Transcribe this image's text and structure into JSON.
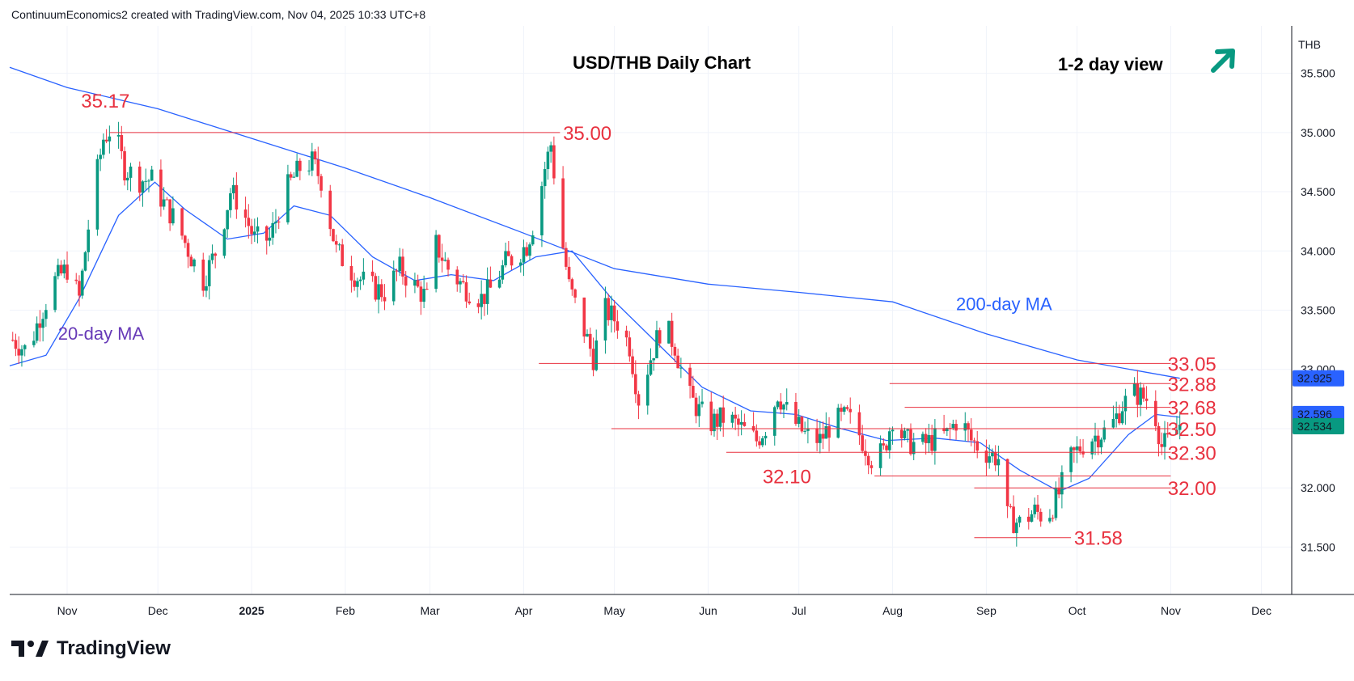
{
  "header": {
    "text": "ContinuumEconomics2 created with TradingView.com, Nov 04, 2025 10:33 UTC+8"
  },
  "brand": {
    "name": "TradingView",
    "icon": "tradingview-logo-icon"
  },
  "chart_data": {
    "type": "candlestick",
    "title": "USD/THB Daily Chart",
    "view_label": "1-2 day view",
    "view_icon": "arrow-up-right-icon",
    "currency_label": "THB",
    "ylim": [
      31.1,
      35.9
    ],
    "y_ticks": [
      35.5,
      35.0,
      34.5,
      34.0,
      33.5,
      33.0,
      32.5,
      32.0,
      31.5
    ],
    "y_tick_labels": [
      "35.500",
      "35.000",
      "34.500",
      "34.000",
      "33.500",
      "33.000",
      "32.500",
      "32.000",
      "31.500"
    ],
    "x_range": [
      "2024-10-13",
      "2025-12-11"
    ],
    "x_ticks": [
      {
        "date": "2024-11-01",
        "label": "Nov",
        "bold": false
      },
      {
        "date": "2024-12-01",
        "label": "Dec",
        "bold": false
      },
      {
        "date": "2025-01-01",
        "label": "2025",
        "bold": true
      },
      {
        "date": "2025-02-01",
        "label": "Feb",
        "bold": false
      },
      {
        "date": "2025-03-01",
        "label": "Mar",
        "bold": false
      },
      {
        "date": "2025-04-01",
        "label": "Apr",
        "bold": false
      },
      {
        "date": "2025-05-01",
        "label": "May",
        "bold": false
      },
      {
        "date": "2025-06-01",
        "label": "Jun",
        "bold": false
      },
      {
        "date": "2025-07-01",
        "label": "Jul",
        "bold": false
      },
      {
        "date": "2025-08-01",
        "label": "Aug",
        "bold": false
      },
      {
        "date": "2025-09-01",
        "label": "Sep",
        "bold": false
      },
      {
        "date": "2025-10-01",
        "label": "Oct",
        "bold": false
      },
      {
        "date": "2025-11-01",
        "label": "Nov",
        "bold": false
      },
      {
        "date": "2025-12-01",
        "label": "Dec",
        "bold": false
      }
    ],
    "colors": {
      "up": "#089981",
      "down": "#f23645",
      "ma": "#2962ff",
      "level": "#e8313f",
      "ma20_label": "#673ab7",
      "ma200_label": "#2962ff"
    },
    "price_tags": [
      {
        "value": 32.925,
        "label": "32.925",
        "color": "#2962ff"
      },
      {
        "value": 32.596,
        "label": "32.596",
        "color": "#2962ff"
      },
      {
        "value": 32.534,
        "label": "32.534",
        "color": "#089981"
      }
    ],
    "levels": [
      {
        "value": 35.0,
        "label": "35.00",
        "from": "2024-11-15",
        "to": "2025-04-13",
        "label_at": "2025-04-14"
      },
      {
        "value": 33.05,
        "label": "33.05",
        "from": "2025-04-06",
        "to": "2025-11-01",
        "label_at": "2025-10-31"
      },
      {
        "value": 32.88,
        "label": "32.88",
        "from": "2025-07-31",
        "to": "2025-11-01",
        "label_at": "2025-10-31"
      },
      {
        "value": 32.68,
        "label": "32.68",
        "from": "2025-08-05",
        "to": "2025-11-01",
        "label_at": "2025-10-31"
      },
      {
        "value": 32.5,
        "label": "32.50",
        "from": "2025-04-30",
        "to": "2025-11-01",
        "label_at": "2025-10-31"
      },
      {
        "value": 32.3,
        "label": "32.30",
        "from": "2025-06-07",
        "to": "2025-11-01",
        "label_at": "2025-10-31"
      },
      {
        "value": 32.1,
        "label": "32.10",
        "from": "2025-07-26",
        "to": "2025-11-01",
        "label_at": "2025-06-19"
      },
      {
        "value": 32.0,
        "label": "32.00",
        "from": "2025-08-28",
        "to": "2025-11-01",
        "label_at": "2025-10-31"
      },
      {
        "value": 31.58,
        "label": "31.58",
        "from": "2025-08-28",
        "to": "2025-09-29",
        "label_at": "2025-09-30"
      }
    ],
    "peak_annotation": {
      "value": 35.17,
      "label": "35.17",
      "date": "2024-11-04"
    },
    "ma_labels": [
      {
        "label": "20-day MA",
        "date": "2024-10-29",
        "value": 33.25,
        "key": "ma20"
      },
      {
        "label": "200-day MA",
        "date": "2025-08-22",
        "value": 33.5,
        "key": "ma200"
      }
    ],
    "anchors": [
      [
        "2024-10-14",
        33.25
      ],
      [
        "2024-10-19",
        33.15
      ],
      [
        "2024-10-23",
        33.45
      ],
      [
        "2024-10-28",
        33.75
      ],
      [
        "2024-11-01",
        33.85
      ],
      [
        "2024-11-05",
        33.6
      ],
      [
        "2024-11-09",
        34.4
      ],
      [
        "2024-11-13",
        34.95
      ],
      [
        "2024-11-16",
        35.05
      ],
      [
        "2024-11-20",
        34.7
      ],
      [
        "2024-11-25",
        34.6
      ],
      [
        "2024-11-29",
        34.6
      ],
      [
        "2024-12-03",
        34.4
      ],
      [
        "2024-12-07",
        34.25
      ],
      [
        "2024-12-12",
        33.95
      ],
      [
        "2024-12-16",
        33.75
      ],
      [
        "2024-12-21",
        34.05
      ],
      [
        "2024-12-25",
        34.5
      ],
      [
        "2024-12-28",
        34.4
      ],
      [
        "2025-01-02",
        34.1
      ],
      [
        "2025-01-07",
        34.1
      ],
      [
        "2025-01-12",
        34.5
      ],
      [
        "2025-01-17",
        34.7
      ],
      [
        "2025-01-21",
        34.75
      ],
      [
        "2025-01-24",
        34.6
      ],
      [
        "2025-01-29",
        34.0
      ],
      [
        "2025-02-04",
        33.8
      ],
      [
        "2025-02-09",
        33.7
      ],
      [
        "2025-02-14",
        33.65
      ],
      [
        "2025-02-19",
        33.85
      ],
      [
        "2025-02-24",
        33.7
      ],
      [
        "2025-02-28",
        33.6
      ],
      [
        "2025-03-02",
        34.1
      ],
      [
        "2025-03-07",
        33.85
      ],
      [
        "2025-03-12",
        33.7
      ],
      [
        "2025-03-18",
        33.6
      ],
      [
        "2025-03-22",
        33.7
      ],
      [
        "2025-03-26",
        33.9
      ],
      [
        "2025-03-29",
        33.95
      ],
      [
        "2025-04-02",
        34.05
      ],
      [
        "2025-04-05",
        34.3
      ],
      [
        "2025-04-08",
        34.7
      ],
      [
        "2025-04-10",
        34.9
      ],
      [
        "2025-04-13",
        34.2
      ],
      [
        "2025-04-16",
        33.7
      ],
      [
        "2025-04-20",
        33.4
      ],
      [
        "2025-04-24",
        33.1
      ],
      [
        "2025-04-28",
        33.5
      ],
      [
        "2025-05-02",
        33.4
      ],
      [
        "2025-05-06",
        33.2
      ],
      [
        "2025-05-09",
        32.75
      ],
      [
        "2025-05-13",
        33.1
      ],
      [
        "2025-05-17",
        33.4
      ],
      [
        "2025-05-21",
        33.2
      ],
      [
        "2025-05-25",
        32.8
      ],
      [
        "2025-05-29",
        32.65
      ],
      [
        "2025-06-02",
        32.55
      ],
      [
        "2025-06-07",
        32.6
      ],
      [
        "2025-06-12",
        32.5
      ],
      [
        "2025-06-17",
        32.4
      ],
      [
        "2025-06-21",
        32.55
      ],
      [
        "2025-06-24",
        32.8
      ],
      [
        "2025-06-28",
        32.6
      ],
      [
        "2025-07-03",
        32.45
      ],
      [
        "2025-07-08",
        32.4
      ],
      [
        "2025-07-12",
        32.55
      ],
      [
        "2025-07-17",
        32.6
      ],
      [
        "2025-07-21",
        32.45
      ],
      [
        "2025-07-25",
        32.25
      ],
      [
        "2025-07-29",
        32.3
      ],
      [
        "2025-08-01",
        32.6
      ],
      [
        "2025-08-05",
        32.4
      ],
      [
        "2025-08-10",
        32.35
      ],
      [
        "2025-08-14",
        32.4
      ],
      [
        "2025-08-19",
        32.45
      ],
      [
        "2025-08-23",
        32.6
      ],
      [
        "2025-08-27",
        32.4
      ],
      [
        "2025-09-01",
        32.3
      ],
      [
        "2025-09-05",
        32.25
      ],
      [
        "2025-09-08",
        31.75
      ],
      [
        "2025-09-12",
        31.7
      ],
      [
        "2025-09-17",
        31.8
      ],
      [
        "2025-09-21",
        31.75
      ],
      [
        "2025-09-25",
        31.95
      ],
      [
        "2025-09-29",
        32.25
      ],
      [
        "2025-10-04",
        32.4
      ],
      [
        "2025-10-08",
        32.45
      ],
      [
        "2025-10-12",
        32.5
      ],
      [
        "2025-10-16",
        32.7
      ],
      [
        "2025-10-20",
        32.8
      ],
      [
        "2025-10-24",
        32.75
      ],
      [
        "2025-10-27",
        32.6
      ],
      [
        "2025-10-29",
        32.35
      ],
      [
        "2025-11-01",
        32.4
      ],
      [
        "2025-11-04",
        32.53
      ]
    ],
    "ma20": [
      [
        "2024-10-13",
        33.03
      ],
      [
        "2024-10-25",
        33.12
      ],
      [
        "2024-11-05",
        33.6
      ],
      [
        "2024-11-18",
        34.3
      ],
      [
        "2024-11-30",
        34.58
      ],
      [
        "2024-12-10",
        34.35
      ],
      [
        "2024-12-24",
        34.1
      ],
      [
        "2025-01-05",
        34.15
      ],
      [
        "2025-01-15",
        34.38
      ],
      [
        "2025-01-27",
        34.3
      ],
      [
        "2025-02-10",
        33.95
      ],
      [
        "2025-02-24",
        33.75
      ],
      [
        "2025-03-08",
        33.8
      ],
      [
        "2025-03-22",
        33.75
      ],
      [
        "2025-04-05",
        33.95
      ],
      [
        "2025-04-17",
        34.0
      ],
      [
        "2025-04-30",
        33.6
      ],
      [
        "2025-05-14",
        33.25
      ],
      [
        "2025-05-30",
        32.85
      ],
      [
        "2025-06-15",
        32.65
      ],
      [
        "2025-06-30",
        32.62
      ],
      [
        "2025-07-15",
        32.5
      ],
      [
        "2025-07-30",
        32.4
      ],
      [
        "2025-08-15",
        32.42
      ],
      [
        "2025-08-30",
        32.38
      ],
      [
        "2025-09-12",
        32.15
      ],
      [
        "2025-09-25",
        31.97
      ],
      [
        "2025-10-05",
        32.08
      ],
      [
        "2025-10-18",
        32.45
      ],
      [
        "2025-10-27",
        32.62
      ],
      [
        "2025-11-04",
        32.596
      ]
    ],
    "ma200": [
      [
        "2024-10-13",
        35.55
      ],
      [
        "2024-11-01",
        35.38
      ],
      [
        "2024-12-01",
        35.2
      ],
      [
        "2025-01-01",
        34.95
      ],
      [
        "2025-02-01",
        34.7
      ],
      [
        "2025-03-01",
        34.45
      ],
      [
        "2025-04-01",
        34.15
      ],
      [
        "2025-05-01",
        33.85
      ],
      [
        "2025-06-01",
        33.72
      ],
      [
        "2025-07-01",
        33.65
      ],
      [
        "2025-08-01",
        33.57
      ],
      [
        "2025-09-01",
        33.3
      ],
      [
        "2025-10-01",
        33.08
      ],
      [
        "2025-11-04",
        32.925
      ]
    ]
  }
}
